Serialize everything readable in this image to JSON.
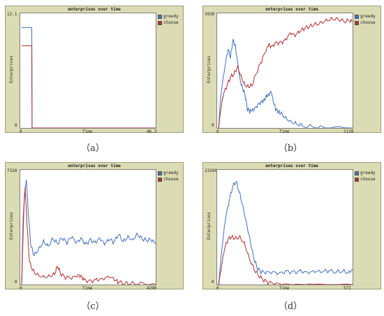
{
  "chart_data": [
    {
      "id": "a",
      "type": "line",
      "title": "enterprises over time",
      "xlabel": "Time",
      "ylabel": "Enterprises",
      "xlim": [
        0,
        46.3
      ],
      "ylim": [
        0,
        12.1
      ],
      "x_tick_min": "0",
      "x_tick_max": "46.3",
      "y_tick_min": "0",
      "y_tick_max": "12.1",
      "caption": "（a）",
      "legend_position": "top-right",
      "series": [
        {
          "name": "greedy",
          "color": "#3f6fbf",
          "values": [
            [
              0,
              11
            ],
            [
              3.5,
              11
            ],
            [
              3.6,
              0
            ],
            [
              46.3,
              0
            ]
          ]
        },
        {
          "name": "choose",
          "color": "#b03030",
          "values": [
            [
              0,
              9
            ],
            [
              3.5,
              9
            ],
            [
              3.6,
              0
            ],
            [
              46.3,
              0
            ]
          ]
        }
      ]
    },
    {
      "id": "b",
      "type": "line",
      "title": "enterprises over time",
      "xlabel": "Time",
      "ylabel": "Enterprises",
      "xlim": [
        0,
        1120
      ],
      "ylim": [
        0,
        3930
      ],
      "x_tick_min": "0",
      "x_tick_max": "1120",
      "y_tick_min": "0",
      "y_tick_max": "3930",
      "caption": "（b）",
      "legend_position": "top-right",
      "series": [
        {
          "name": "greedy",
          "color": "#3f6fbf",
          "values": [
            [
              0,
              0
            ],
            [
              20,
              1200
            ],
            [
              50,
              2100
            ],
            [
              80,
              2800
            ],
            [
              100,
              2500
            ],
            [
              120,
              3100
            ],
            [
              140,
              2900
            ],
            [
              160,
              2300
            ],
            [
              180,
              1700
            ],
            [
              200,
              1400
            ],
            [
              220,
              1200
            ],
            [
              240,
              700
            ],
            [
              260,
              600
            ],
            [
              280,
              650
            ],
            [
              300,
              700
            ],
            [
              330,
              850
            ],
            [
              360,
              950
            ],
            [
              380,
              1000
            ],
            [
              400,
              1150
            ],
            [
              420,
              1200
            ],
            [
              440,
              1300
            ],
            [
              460,
              900
            ],
            [
              480,
              650
            ],
            [
              500,
              550
            ],
            [
              520,
              500
            ],
            [
              560,
              330
            ],
            [
              600,
              200
            ],
            [
              650,
              130
            ],
            [
              700,
              60
            ],
            [
              800,
              20
            ],
            [
              900,
              5
            ],
            [
              1120,
              0
            ]
          ]
        },
        {
          "name": "choose",
          "color": "#b03030",
          "values": [
            [
              0,
              0
            ],
            [
              20,
              700
            ],
            [
              40,
              1200
            ],
            [
              70,
              1500
            ],
            [
              100,
              1800
            ],
            [
              130,
              1900
            ],
            [
              160,
              2150
            ],
            [
              190,
              1800
            ],
            [
              220,
              1500
            ],
            [
              250,
              1450
            ],
            [
              280,
              1500
            ],
            [
              320,
              2000
            ],
            [
              360,
              2400
            ],
            [
              400,
              2800
            ],
            [
              420,
              3000
            ],
            [
              440,
              2900
            ],
            [
              480,
              3050
            ],
            [
              520,
              3050
            ],
            [
              560,
              3150
            ],
            [
              600,
              3400
            ],
            [
              640,
              3300
            ],
            [
              680,
              3450
            ],
            [
              720,
              3550
            ],
            [
              760,
              3600
            ],
            [
              800,
              3650
            ],
            [
              850,
              3700
            ],
            [
              900,
              3800
            ],
            [
              950,
              3850
            ],
            [
              1000,
              3850
            ],
            [
              1050,
              3780
            ],
            [
              1100,
              3820
            ],
            [
              1120,
              3800
            ]
          ]
        }
      ]
    },
    {
      "id": "c",
      "type": "line",
      "title": "enterprises over time",
      "xlabel": "Time",
      "ylabel": "Enterprises",
      "xlim": [
        0,
        4290
      ],
      "ylim": [
        0,
        7320
      ],
      "x_tick_min": "0",
      "x_tick_max": "4290",
      "y_tick_min": "0",
      "y_tick_max": "7320",
      "caption": "（c）",
      "legend_position": "top-right",
      "series": [
        {
          "name": "greedy",
          "color": "#3f6fbf",
          "values": [
            [
              0,
              0
            ],
            [
              80,
              5500
            ],
            [
              150,
              7000
            ],
            [
              220,
              4500
            ],
            [
              300,
              2500
            ],
            [
              400,
              1900
            ],
            [
              550,
              2300
            ],
            [
              700,
              2800
            ],
            [
              850,
              2500
            ],
            [
              1000,
              3000
            ],
            [
              1150,
              2700
            ],
            [
              1300,
              3100
            ],
            [
              1450,
              2800
            ],
            [
              1600,
              3200
            ],
            [
              1750,
              2800
            ],
            [
              1900,
              3100
            ],
            [
              2050,
              2700
            ],
            [
              2200,
              3000
            ],
            [
              2350,
              2800
            ],
            [
              2500,
              3100
            ],
            [
              2650,
              2700
            ],
            [
              2800,
              3000
            ],
            [
              2950,
              2800
            ],
            [
              3100,
              3300
            ],
            [
              3250,
              2800
            ],
            [
              3400,
              3100
            ],
            [
              3550,
              2900
            ],
            [
              3700,
              3300
            ],
            [
              3850,
              3000
            ],
            [
              4000,
              2900
            ],
            [
              4150,
              3000
            ],
            [
              4290,
              2700
            ]
          ]
        },
        {
          "name": "choose",
          "color": "#b03030",
          "values": [
            [
              0,
              0
            ],
            [
              50,
              4500
            ],
            [
              110,
              6500
            ],
            [
              170,
              4000
            ],
            [
              250,
              1500
            ],
            [
              350,
              900
            ],
            [
              500,
              600
            ],
            [
              700,
              450
            ],
            [
              900,
              500
            ],
            [
              1050,
              650
            ],
            [
              1150,
              1200
            ],
            [
              1250,
              700
            ],
            [
              1400,
              500
            ],
            [
              1600,
              450
            ],
            [
              1800,
              650
            ],
            [
              1900,
              600
            ],
            [
              2000,
              350
            ],
            [
              2200,
              250
            ],
            [
              2400,
              350
            ],
            [
              2600,
              400
            ],
            [
              2800,
              550
            ],
            [
              3000,
              300
            ],
            [
              3100,
              150
            ],
            [
              3300,
              60
            ],
            [
              3500,
              20
            ],
            [
              3800,
              5
            ],
            [
              4290,
              0
            ]
          ]
        }
      ]
    },
    {
      "id": "d",
      "type": "line",
      "title": "enterprises over time",
      "xlabel": "Time",
      "ylabel": "Enterprises",
      "xlim": [
        0,
        571
      ],
      "ylim": [
        0,
        23200
      ],
      "x_tick_min": "0",
      "x_tick_max": "571",
      "y_tick_min": "0",
      "y_tick_max": "23200",
      "caption": "（d）",
      "legend_position": "top-right",
      "series": [
        {
          "name": "greedy",
          "color": "#3f6fbf",
          "values": [
            [
              0,
              0
            ],
            [
              15,
              8000
            ],
            [
              30,
              14000
            ],
            [
              45,
              17500
            ],
            [
              60,
              20500
            ],
            [
              75,
              21500
            ],
            [
              90,
              19000
            ],
            [
              105,
              16000
            ],
            [
              120,
              12500
            ],
            [
              135,
              9000
            ],
            [
              150,
              5500
            ],
            [
              165,
              3500
            ],
            [
              180,
              2800
            ],
            [
              200,
              2600
            ],
            [
              230,
              2700
            ],
            [
              260,
              2500
            ],
            [
              290,
              2900
            ],
            [
              320,
              2700
            ],
            [
              350,
              2900
            ],
            [
              380,
              2600
            ],
            [
              410,
              2800
            ],
            [
              440,
              2700
            ],
            [
              470,
              2900
            ],
            [
              500,
              2500
            ],
            [
              530,
              2700
            ],
            [
              555,
              2300
            ],
            [
              571,
              3100
            ]
          ]
        },
        {
          "name": "choose",
          "color": "#b03030",
          "values": [
            [
              0,
              0
            ],
            [
              10,
              3000
            ],
            [
              25,
              7500
            ],
            [
              40,
              9500
            ],
            [
              55,
              10000
            ],
            [
              70,
              9500
            ],
            [
              90,
              9800
            ],
            [
              110,
              8500
            ],
            [
              130,
              5500
            ],
            [
              150,
              3200
            ],
            [
              170,
              1800
            ],
            [
              190,
              1000
            ],
            [
              210,
              500
            ],
            [
              240,
              250
            ],
            [
              280,
              100
            ],
            [
              330,
              40
            ],
            [
              400,
              10
            ],
            [
              571,
              0
            ]
          ]
        }
      ]
    }
  ]
}
